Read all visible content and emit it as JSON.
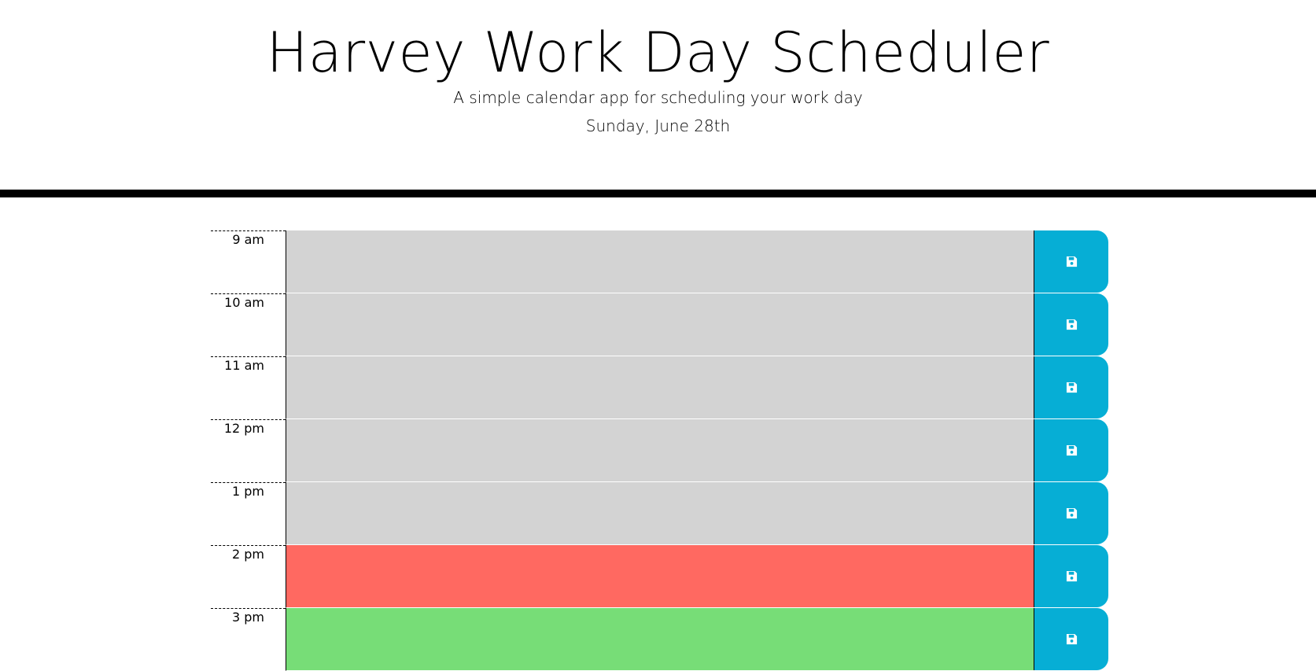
{
  "header": {
    "title": "Harvey Work Day Scheduler",
    "subtitle": "A simple calendar app for scheduling your work day",
    "current_day": "Sunday, June 28th"
  },
  "colors": {
    "past": "#d3d3d3",
    "present": "#ff6961",
    "future": "#77dd77",
    "save_button": "#06aed5",
    "header_border": "#000000"
  },
  "save_icon": "floppy-disk-icon",
  "time_blocks": [
    {
      "hour": "9 am",
      "status": "past",
      "text": ""
    },
    {
      "hour": "10 am",
      "status": "past",
      "text": ""
    },
    {
      "hour": "11 am",
      "status": "past",
      "text": ""
    },
    {
      "hour": "12 pm",
      "status": "past",
      "text": ""
    },
    {
      "hour": "1 pm",
      "status": "past",
      "text": ""
    },
    {
      "hour": "2 pm",
      "status": "present",
      "text": ""
    },
    {
      "hour": "3 pm",
      "status": "future",
      "text": ""
    }
  ]
}
